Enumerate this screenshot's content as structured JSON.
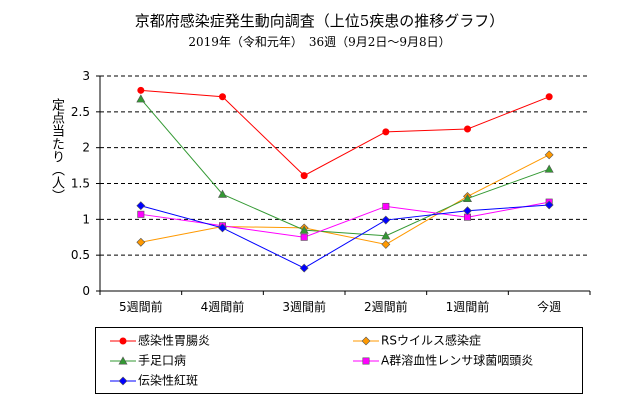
{
  "chart_data": {
    "type": "line",
    "title": "京都府感染症発生動向調査（上位5疾患の推移グラフ）",
    "subtitle": "2019年（令和元年）　36週（9月2日～9月8日）",
    "ylabel": "定点当たり（人）",
    "xlabel": "",
    "ylim": [
      0,
      3
    ],
    "yticks": [
      "0",
      "0.5",
      "1",
      "1.5",
      "2",
      "2.5",
      "3"
    ],
    "grid": true,
    "legend_position": "bottom",
    "categories": [
      "5週間前",
      "4週間前",
      "3週間前",
      "2週間前",
      "1週間前",
      "今週"
    ],
    "series": [
      {
        "name": "感染性胃腸炎",
        "color": "#ff0000",
        "marker": "circle",
        "values": [
          2.8,
          2.71,
          1.61,
          2.22,
          2.26,
          2.71
        ]
      },
      {
        "name": "RSウイルス感染症",
        "color": "#ff9900",
        "marker": "diamond",
        "values": [
          0.68,
          0.9,
          0.88,
          0.65,
          1.32,
          1.9
        ]
      },
      {
        "name": "手足口病",
        "color": "#339933",
        "marker": "triangle",
        "values": [
          2.68,
          1.35,
          0.85,
          0.77,
          1.29,
          1.7
        ]
      },
      {
        "name": "A群溶血性レンサ球菌咽頭炎",
        "color": "#ff00ff",
        "marker": "square",
        "values": [
          1.07,
          0.91,
          0.75,
          1.18,
          1.03,
          1.24
        ]
      },
      {
        "name": "伝染性紅斑",
        "color": "#0000ff",
        "marker": "diamond",
        "values": [
          1.19,
          0.88,
          0.32,
          0.99,
          1.12,
          1.2
        ]
      }
    ]
  }
}
